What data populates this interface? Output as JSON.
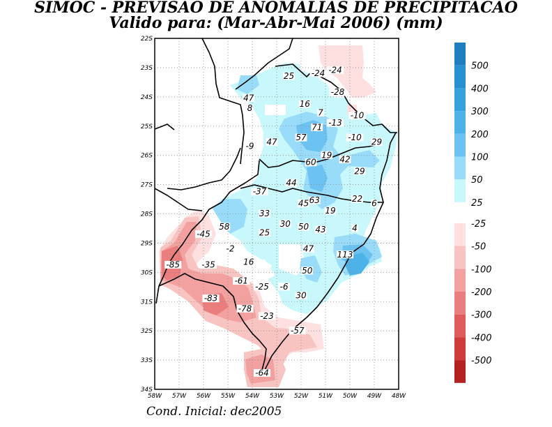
{
  "title": {
    "line1": "SIMOC - PREVISAO DE ANOMALIAS DE PRECIPITACAO",
    "line2": "Valido para: (Mar-Abr-Mai 2006) (mm)"
  },
  "footer": "Cond. Inicial: dec2005",
  "axes": {
    "lon_labels": [
      "58W",
      "57W",
      "56W",
      "55W",
      "54W",
      "53W",
      "52W",
      "51W",
      "50W",
      "49W",
      "48W"
    ],
    "lat_labels": [
      "22S",
      "23S",
      "24S",
      "25S",
      "26S",
      "27S",
      "28S",
      "29S",
      "30S",
      "31S",
      "32S",
      "33S",
      "34S"
    ]
  },
  "colorbar": [
    {
      "label": "500",
      "color": "#1f7ebf"
    },
    {
      "label": "400",
      "color": "#2690d0"
    },
    {
      "label": "300",
      "color": "#35a2dd"
    },
    {
      "label": "200",
      "color": "#4db2e8"
    },
    {
      "label": "100",
      "color": "#6cc3f2"
    },
    {
      "label": "50",
      "color": "#98dcf9"
    },
    {
      "label": "25",
      "color": "#c8f7fc"
    },
    {
      "label": "-25",
      "color": "#fde0df"
    },
    {
      "label": "-50",
      "color": "#f8c4c1"
    },
    {
      "label": "-100",
      "color": "#f2a0a0"
    },
    {
      "label": "-200",
      "color": "#ea7e7e"
    },
    {
      "label": "-300",
      "color": "#e05c5c"
    },
    {
      "label": "-400",
      "color": "#d03c3c"
    },
    {
      "label": "-500",
      "color": "#b52121"
    }
  ],
  "station_values": [
    {
      "text": "25",
      "lon": -52.5,
      "lat": -23.35
    },
    {
      "text": "-24",
      "lon": -51.3,
      "lat": -23.25
    },
    {
      "text": "-24",
      "lon": -50.6,
      "lat": -23.15
    },
    {
      "text": "-28",
      "lon": -50.5,
      "lat": -23.9
    },
    {
      "text": "47",
      "lon": -54.15,
      "lat": -24.1
    },
    {
      "text": "16",
      "lon": -51.85,
      "lat": -24.3
    },
    {
      "text": "8",
      "lon": -54.1,
      "lat": -24.45
    },
    {
      "text": "7",
      "lon": -51.2,
      "lat": -24.6
    },
    {
      "text": "-10",
      "lon": -49.7,
      "lat": -24.7
    },
    {
      "text": "-13",
      "lon": -50.6,
      "lat": -24.95
    },
    {
      "text": "71",
      "lon": -51.35,
      "lat": -25.1
    },
    {
      "text": "57",
      "lon": -52.0,
      "lat": -25.45
    },
    {
      "text": "47",
      "lon": -53.2,
      "lat": -25.6
    },
    {
      "text": "-10",
      "lon": -49.8,
      "lat": -25.45
    },
    {
      "text": "29",
      "lon": -48.9,
      "lat": -25.6
    },
    {
      "text": "-9",
      "lon": -54.1,
      "lat": -25.75
    },
    {
      "text": "19",
      "lon": -50.95,
      "lat": -26.05
    },
    {
      "text": "42",
      "lon": -50.2,
      "lat": -26.2
    },
    {
      "text": "60",
      "lon": -51.6,
      "lat": -26.3
    },
    {
      "text": "29",
      "lon": -49.6,
      "lat": -26.6
    },
    {
      "text": "44",
      "lon": -52.4,
      "lat": -27.0
    },
    {
      "text": "-37",
      "lon": -53.7,
      "lat": -27.3
    },
    {
      "text": "22",
      "lon": -49.7,
      "lat": -27.55
    },
    {
      "text": "63",
      "lon": -51.45,
      "lat": -27.6
    },
    {
      "text": "45",
      "lon": -51.9,
      "lat": -27.7
    },
    {
      "text": "6",
      "lon": -49.0,
      "lat": -27.7
    },
    {
      "text": "19",
      "lon": -50.8,
      "lat": -27.95
    },
    {
      "text": "33",
      "lon": -53.5,
      "lat": -28.05
    },
    {
      "text": "58",
      "lon": -55.15,
      "lat": -28.5
    },
    {
      "text": "30",
      "lon": -52.65,
      "lat": -28.4
    },
    {
      "text": "50",
      "lon": -51.9,
      "lat": -28.5
    },
    {
      "text": "43",
      "lon": -51.2,
      "lat": -28.6
    },
    {
      "text": "4",
      "lon": -49.8,
      "lat": -28.55
    },
    {
      "text": "25",
      "lon": -53.5,
      "lat": -28.7
    },
    {
      "text": "-45",
      "lon": -56.0,
      "lat": -28.75
    },
    {
      "text": "-2",
      "lon": -54.9,
      "lat": -29.25
    },
    {
      "text": "47",
      "lon": -51.7,
      "lat": -29.25
    },
    {
      "text": "113",
      "lon": -50.2,
      "lat": -29.45
    },
    {
      "text": "16",
      "lon": -54.15,
      "lat": -29.7
    },
    {
      "text": "-35",
      "lon": -55.8,
      "lat": -29.8
    },
    {
      "text": "-85",
      "lon": -57.25,
      "lat": -29.8
    },
    {
      "text": "50",
      "lon": -51.75,
      "lat": -30.0
    },
    {
      "text": "-61",
      "lon": -54.45,
      "lat": -30.35
    },
    {
      "text": "-25",
      "lon": -53.6,
      "lat": -30.55
    },
    {
      "text": "-6",
      "lon": -52.7,
      "lat": -30.55
    },
    {
      "text": "30",
      "lon": -52.0,
      "lat": -30.85
    },
    {
      "text": "-83",
      "lon": -55.7,
      "lat": -30.95
    },
    {
      "text": "-78",
      "lon": -54.3,
      "lat": -31.3
    },
    {
      "text": "-23",
      "lon": -53.4,
      "lat": -31.55
    },
    {
      "text": "-57",
      "lon": -52.15,
      "lat": -32.05
    },
    {
      "text": "-64",
      "lon": -53.6,
      "lat": -33.5
    }
  ]
}
